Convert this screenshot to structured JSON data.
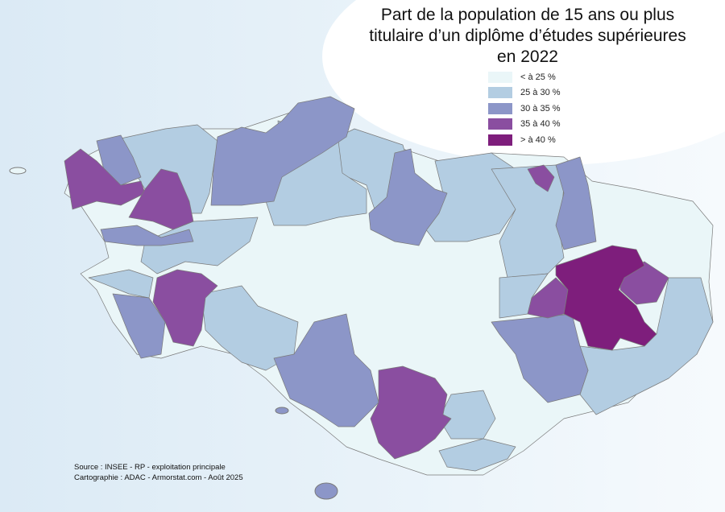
{
  "title": [
    "Part de la population de 15 ans ou plus",
    "titulaire d’un diplôme d’études supérieures",
    "en 2022"
  ],
  "legend": [
    {
      "label": "< à 25 %",
      "color": "#eaf6f8"
    },
    {
      "label": "25 à 30 %",
      "color": "#b3cde2"
    },
    {
      "label": "30 à 35  %",
      "color": "#8c96c8"
    },
    {
      "label": "35 à 40 %",
      "color": "#8a4ea0"
    },
    {
      "label": "> à 40 %",
      "color": "#7e1e7c"
    }
  ],
  "source": [
    "Source : INSEE - RP - exploitation principale",
    "Cartographie : ADAC - Armorstat.com - Août 2025"
  ]
}
